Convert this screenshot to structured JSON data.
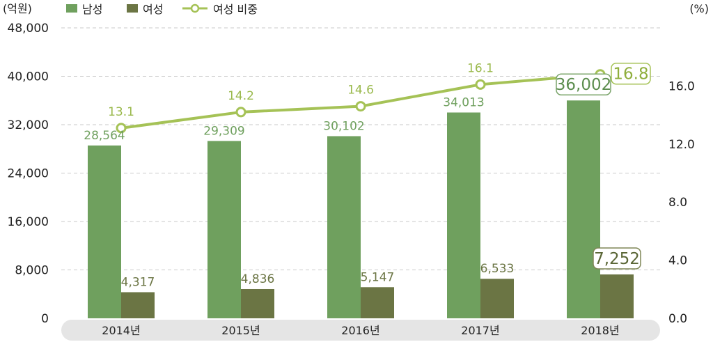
{
  "chart_data": {
    "type": "bar+line",
    "categories": [
      "2014년",
      "2015년",
      "2016년",
      "2017년",
      "2018년"
    ],
    "series": [
      {
        "name": "남성",
        "type": "bar",
        "axis": "left",
        "values": [
          28564,
          29309,
          30102,
          34013,
          36002
        ]
      },
      {
        "name": "여성",
        "type": "bar",
        "axis": "left",
        "values": [
          4317,
          4836,
          5147,
          6533,
          7252
        ]
      },
      {
        "name": "여성 비중",
        "type": "line",
        "axis": "right",
        "values": [
          13.1,
          14.2,
          14.6,
          16.1,
          16.8
        ]
      }
    ],
    "value_labels": {
      "male": [
        "28,564",
        "29,309",
        "30,102",
        "34,013",
        "36,002"
      ],
      "female": [
        "4,317",
        "4,836",
        "5,147",
        "6,533",
        "7,252"
      ],
      "ratio": [
        "13.1",
        "14.2",
        "14.6",
        "16.1",
        "16.8"
      ]
    },
    "left_axis": {
      "unit": "(억원)",
      "range": [
        0,
        48000
      ],
      "ticks": [
        "0",
        "8,000",
        "16,000",
        "24,000",
        "32,000",
        "40,000",
        "48,000"
      ]
    },
    "right_axis": {
      "unit": "(%)",
      "range": [
        0,
        20
      ],
      "ticks": [
        "0.0",
        "4.0",
        "8.0",
        "12.0",
        "16.0"
      ]
    },
    "legend": [
      "남성",
      "여성",
      "여성 비중"
    ],
    "legend_position": "top-left",
    "grid": true,
    "highlight_last": true,
    "colors": {
      "male": "#6fa05e",
      "female": "#6b7544",
      "ratio": "#a5c256",
      "grid": "#c9c9c9",
      "axis_band": "#e5e5e5"
    }
  }
}
